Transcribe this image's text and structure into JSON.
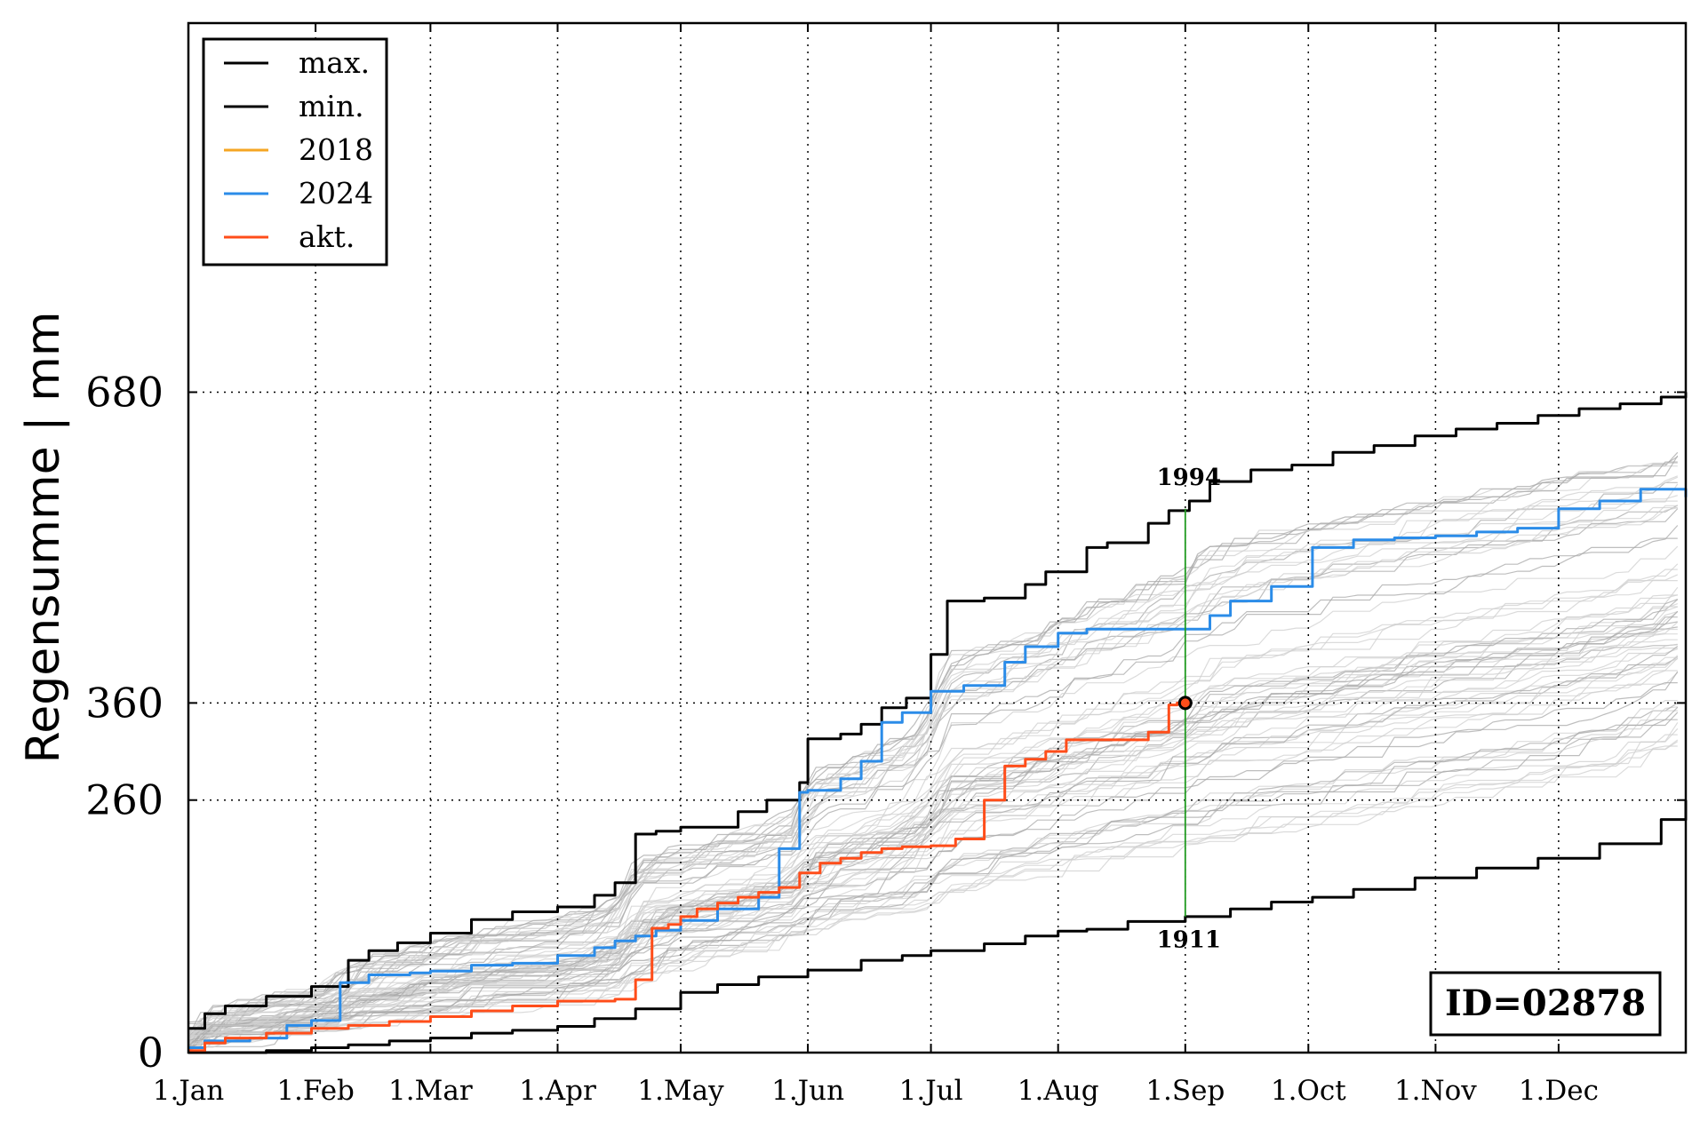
{
  "chart_data": {
    "type": "line",
    "ylabel": "Regensumme | mm",
    "xlabel": "",
    "title": "",
    "x_unit": "day of year",
    "xlim": [
      1,
      366
    ],
    "ylim": [
      0,
      1060
    ],
    "grid": true,
    "legend_position": "top-left",
    "x_ticks": [
      {
        "day": 1,
        "label": "1.Jan"
      },
      {
        "day": 32,
        "label": "1.Feb"
      },
      {
        "day": 60,
        "label": "1.Mar"
      },
      {
        "day": 91,
        "label": "1.Apr"
      },
      {
        "day": 121,
        "label": "1.May"
      },
      {
        "day": 152,
        "label": "1.Jun"
      },
      {
        "day": 182,
        "label": "1.Jul"
      },
      {
        "day": 213,
        "label": "1.Aug"
      },
      {
        "day": 244,
        "label": "1.Sep"
      },
      {
        "day": 274,
        "label": "1.Oct"
      },
      {
        "day": 305,
        "label": "1.Nov"
      },
      {
        "day": 335,
        "label": "1.Dec"
      }
    ],
    "y_ticks": [
      {
        "value": 0,
        "label": "0"
      },
      {
        "value": 260,
        "label": "260"
      },
      {
        "value": 360,
        "label": "360"
      },
      {
        "value": 680,
        "label": "680"
      }
    ],
    "legend": [
      {
        "label": "max.",
        "color": "#000000"
      },
      {
        "label": "min.",
        "color": "#000000"
      },
      {
        "label": "2018",
        "color": "#f5a623"
      },
      {
        "label": "2024",
        "color": "#2b8ce8"
      },
      {
        "label": "akt.",
        "color": "#ff4d1a"
      }
    ],
    "series": [
      {
        "name": "max.",
        "color": "#000000",
        "x": [
          1,
          5,
          10,
          20,
          31,
          40,
          45,
          52,
          60,
          70,
          80,
          91,
          100,
          105,
          110,
          115,
          121,
          135,
          142,
          150,
          152,
          160,
          165,
          170,
          176,
          182,
          186,
          195,
          205,
          210,
          220,
          225,
          235,
          240,
          245,
          250,
          260,
          270,
          280,
          290,
          300,
          310,
          320,
          330,
          340,
          350,
          360,
          366
        ],
        "y": [
          25,
          40,
          48,
          58,
          68,
          95,
          105,
          113,
          123,
          137,
          145,
          150,
          162,
          175,
          225,
          228,
          232,
          248,
          260,
          278,
          323,
          328,
          338,
          355,
          365,
          410,
          465,
          468,
          482,
          495,
          520,
          525,
          545,
          558,
          568,
          588,
          600,
          605,
          618,
          625,
          635,
          642,
          648,
          656,
          663,
          668,
          675,
          680
        ]
      },
      {
        "name": "min.",
        "color": "#000000",
        "x": [
          1,
          20,
          31,
          40,
          50,
          60,
          70,
          80,
          91,
          100,
          110,
          121,
          130,
          140,
          152,
          165,
          175,
          182,
          195,
          205,
          213,
          220,
          230,
          244,
          255,
          265,
          275,
          285,
          300,
          315,
          330,
          345,
          360,
          366
        ],
        "y": [
          0,
          2,
          5,
          8,
          12,
          15,
          20,
          23,
          27,
          35,
          45,
          62,
          70,
          78,
          85,
          95,
          100,
          105,
          112,
          120,
          125,
          127,
          135,
          140,
          148,
          155,
          160,
          168,
          180,
          190,
          200,
          215,
          240,
          260
        ]
      },
      {
        "name": "2024",
        "color": "#2b8ce8",
        "x": [
          1,
          5,
          10,
          16,
          25,
          31,
          38,
          45,
          55,
          60,
          70,
          80,
          91,
          100,
          105,
          110,
          115,
          121,
          130,
          140,
          145,
          150,
          152,
          160,
          165,
          170,
          175,
          182,
          190,
          200,
          205,
          213,
          220,
          230,
          244,
          250,
          255,
          265,
          275,
          285,
          295,
          305,
          315,
          325,
          335,
          345,
          355,
          366
        ],
        "y": [
          5,
          12,
          12,
          15,
          28,
          33,
          72,
          80,
          82,
          84,
          90,
          92,
          100,
          108,
          115,
          120,
          126,
          136,
          148,
          160,
          210,
          268,
          270,
          282,
          300,
          340,
          350,
          372,
          378,
          402,
          418,
          432,
          436,
          436,
          436,
          450,
          465,
          480,
          520,
          528,
          530,
          532,
          536,
          540,
          560,
          568,
          580,
          572
        ]
      },
      {
        "name": "akt.",
        "color": "#ff4d1a",
        "x": [
          1,
          5,
          10,
          20,
          31,
          40,
          50,
          60,
          70,
          80,
          91,
          100,
          105,
          110,
          114,
          118,
          121,
          125,
          130,
          135,
          140,
          145,
          150,
          155,
          160,
          165,
          170,
          175,
          180,
          182,
          188,
          195,
          200,
          205,
          210,
          215,
          225,
          235,
          240,
          242,
          244
        ],
        "y": [
          2,
          10,
          15,
          20,
          25,
          28,
          32,
          37,
          43,
          48,
          53,
          53,
          55,
          75,
          128,
          132,
          140,
          148,
          154,
          160,
          165,
          170,
          185,
          195,
          200,
          206,
          210,
          212,
          212,
          213,
          220,
          260,
          295,
          302,
          310,
          322,
          322,
          330,
          358,
          360,
          360
        ]
      }
    ],
    "annotations": [
      {
        "label": "1994",
        "x": 244,
        "y": 555
      },
      {
        "label": "1911",
        "x": 244,
        "y": 145
      },
      {
        "label": "ID=02878"
      }
    ]
  }
}
